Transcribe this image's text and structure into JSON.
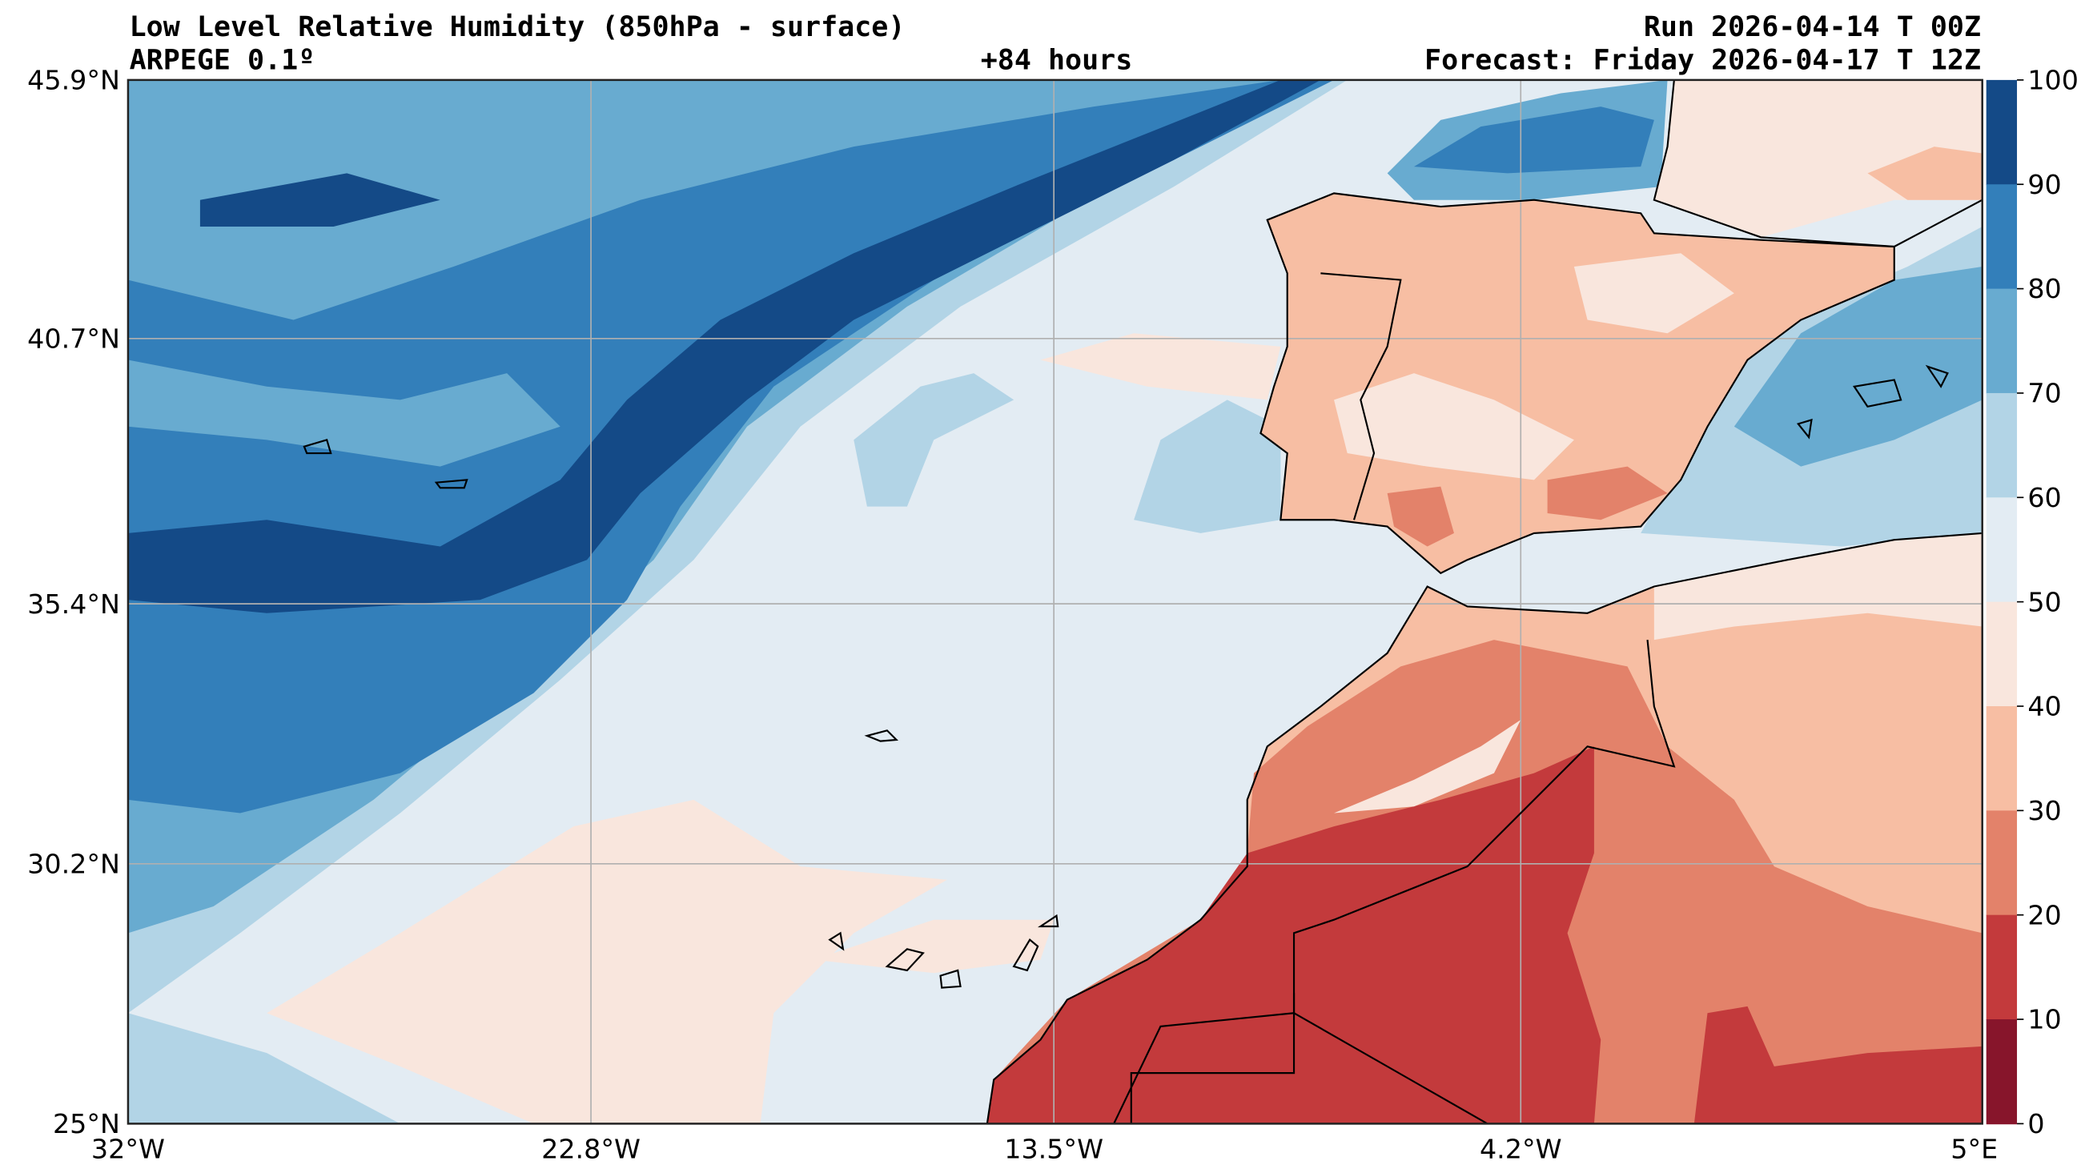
{
  "header": {
    "title": "Low Level Relative Humidity (850hPa - surface)",
    "model": "ARPEGE 0.1º",
    "lead_time": "+84 hours",
    "run": "Run 2026-04-14 T 00Z",
    "forecast": "Forecast: Friday 2026-04-17 T 12Z"
  },
  "axes": {
    "lat_ticks": [
      "45.9°N",
      "40.7°N",
      "35.4°N",
      "30.2°N",
      "25°N"
    ],
    "lon_ticks": [
      "32°W",
      "22.8°W",
      "13.5°W",
      "4.2°W",
      "5°E"
    ]
  },
  "colorbar": {
    "ticks": [
      "100",
      "90",
      "80",
      "70",
      "60",
      "50",
      "40",
      "30",
      "20",
      "10",
      "0"
    ],
    "colors": [
      "#144a87",
      "#337fba",
      "#68abd0",
      "#b2d4e6",
      "#e3ecf3",
      "#f9e6dd",
      "#f7bea3",
      "#e3826a",
      "#c33a3c",
      "#87152b"
    ]
  }
}
